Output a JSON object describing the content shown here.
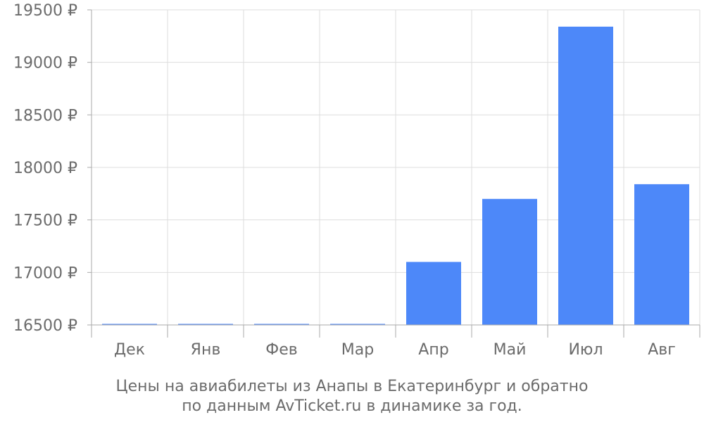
{
  "chart_data": {
    "type": "bar",
    "categories": [
      "Дек",
      "Янв",
      "Фев",
      "Мар",
      "Апр",
      "Май",
      "Июл",
      "Авг"
    ],
    "values": [
      16500,
      16500,
      16500,
      16500,
      17100,
      17700,
      19340,
      17840
    ],
    "ylim": [
      16500,
      19500
    ],
    "yticks": [
      "16500 ₽",
      "17000 ₽",
      "17500 ₽",
      "18000 ₽",
      "18500 ₽",
      "19000 ₽",
      "19500 ₽"
    ],
    "ytick_values": [
      16500,
      17000,
      17500,
      18000,
      18500,
      19000,
      19500
    ],
    "caption_line1": "Цены на авиабилеты из Анапы в Екатеринбург и обратно",
    "caption_line2": "по данным AvTicket.ru в динамике за год.",
    "grid": true,
    "bar_color": "#4d88f9",
    "grid_color": "#dddddd",
    "axis_color": "#aaaaaa",
    "text_color": "#6b6b6b"
  }
}
